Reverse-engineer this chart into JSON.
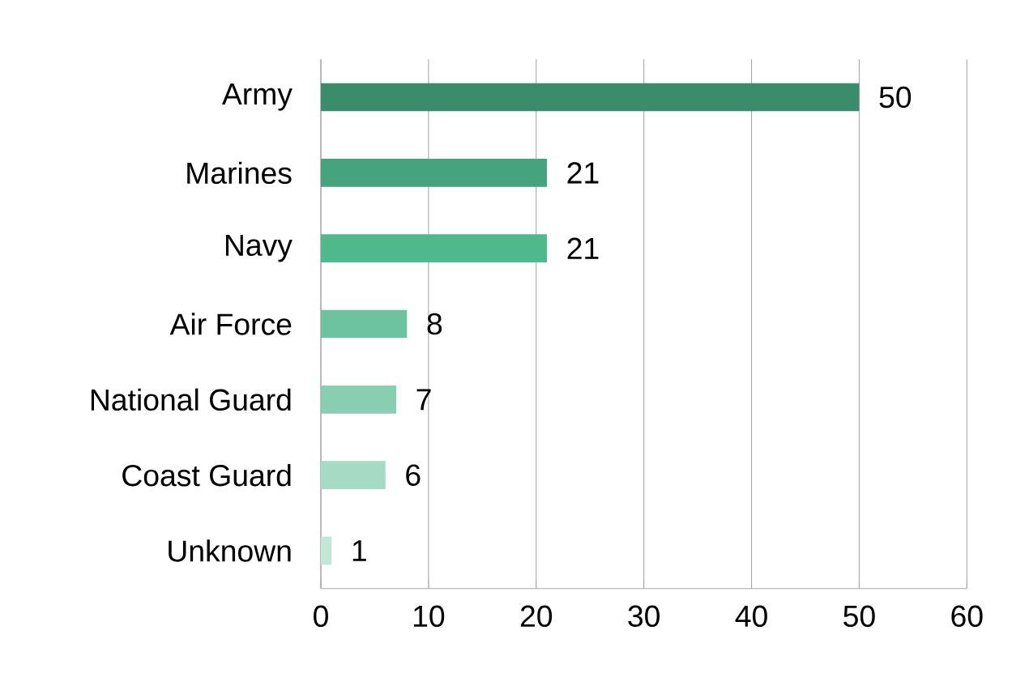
{
  "chart_data": {
    "type": "bar",
    "orientation": "horizontal",
    "categories": [
      "Army",
      "Marines",
      "Navy",
      "Air Force",
      "National Guard",
      "Coast Guard",
      "Unknown"
    ],
    "values": [
      50,
      21,
      21,
      8,
      7,
      6,
      1
    ],
    "colors": [
      "#3a8c6c",
      "#45a37d",
      "#4fb98c",
      "#6cc3a0",
      "#88cfb2",
      "#a5dbc4",
      "#c2e7d7"
    ],
    "xlim": [
      0,
      60
    ],
    "xticks": [
      0,
      10,
      20,
      30,
      40,
      50,
      60
    ],
    "grid": "x",
    "data_labels": true
  }
}
